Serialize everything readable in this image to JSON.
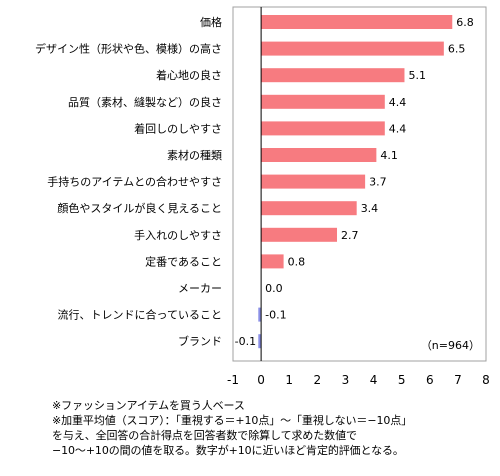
{
  "chart_data": {
    "type": "bar",
    "orientation": "horizontal",
    "categories": [
      "価格",
      "デザイン性（形状や色、模様）の高さ",
      "着心地の良さ",
      "品質（素材、縫製など）の良さ",
      "着回しのしやすさ",
      "素材の種類",
      "手持ちのアイテムとの合わせやすさ",
      "顔色やスタイルが良く見えること",
      "手入れのしやすさ",
      "定番であること",
      "メーカー",
      "流行、トレンドに合っていること",
      "ブランド"
    ],
    "values": [
      6.8,
      6.5,
      5.1,
      4.4,
      4.4,
      4.1,
      3.7,
      3.4,
      2.7,
      0.8,
      0.0,
      -0.1,
      -0.1
    ],
    "value_labels": [
      "6.8",
      "6.5",
      "5.1",
      "4.4",
      "4.4",
      "4.1",
      "3.7",
      "3.4",
      "2.7",
      "0.8",
      "0.0",
      "-0.1",
      "-0.1"
    ],
    "xlim": [
      -1,
      8
    ],
    "xticks": [
      -1,
      0,
      1,
      2,
      3,
      4,
      5,
      6,
      7,
      8
    ],
    "annotation": "（n=964）",
    "colors": {
      "positive": "#f77b80",
      "negative": "#8b90e6",
      "frame": "#a0a0a0",
      "zero_line": "#000000"
    },
    "title": "",
    "xlabel": "",
    "ylabel": "",
    "grid": false,
    "legend": "none"
  },
  "footnotes": [
    "※ファッションアイテムを買う人ベース",
    "※加重平均値（スコア）：「重視する＝+10点」～「重視しない＝−10点」",
    "を与え、全回答の合計得点を回答者数で除算して求めた数値で",
    "−10～+10の間の値を取る。数字が+10に近いほど肯定的評価となる。"
  ]
}
